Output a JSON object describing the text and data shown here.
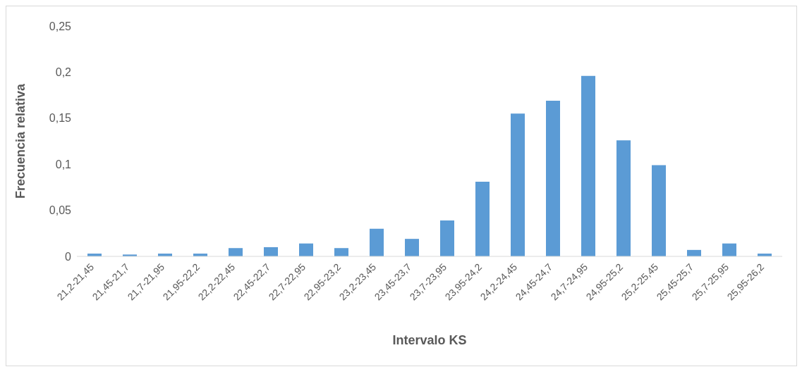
{
  "chart_data": {
    "type": "bar",
    "xlabel": "Intervalo KS",
    "ylabel": "Frecuencia relativa",
    "categories": [
      "21,2-21,45",
      "21,45-21,7",
      "21,7-21,95",
      "21,95-22,2",
      "22,2-22,45",
      "22,45-22,7",
      "22,7-22,95",
      "22,95-23,2",
      "23,2-23,45",
      "23,45-23,7",
      "23,7-23,95",
      "23,95-24,2",
      "24,2-24,45",
      "24,45-24,7",
      "24,7-24,95",
      "24,95-25,2",
      "25,2-25,45",
      "25,45-25,7",
      "25,7-25,95",
      "25,95-26,2"
    ],
    "values": [
      0.003,
      0.002,
      0.003,
      0.003,
      0.009,
      0.01,
      0.014,
      0.009,
      0.03,
      0.019,
      0.039,
      0.081,
      0.155,
      0.169,
      0.196,
      0.126,
      0.099,
      0.007,
      0.014,
      0.003
    ],
    "color": "#5b9bd5",
    "ylim": [
      0,
      0.25
    ],
    "yticks": [
      {
        "value": 0,
        "label": "0"
      },
      {
        "value": 0.05,
        "label": "0,05"
      },
      {
        "value": 0.1,
        "label": "0,1"
      },
      {
        "value": 0.15,
        "label": "0,15"
      },
      {
        "value": 0.2,
        "label": "0,2"
      },
      {
        "value": 0.25,
        "label": "0,25"
      }
    ],
    "grid": false,
    "legend": false
  }
}
